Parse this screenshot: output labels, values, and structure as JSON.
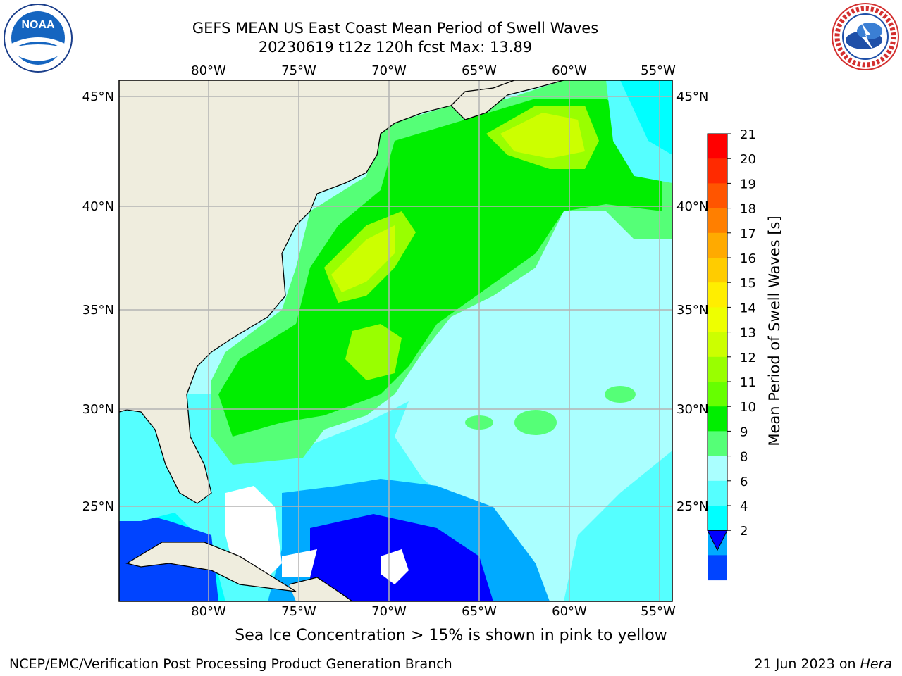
{
  "title": {
    "line1": "GEFS MEAN US East Coast Mean Period of Swell Waves",
    "line2": "20230619 t12z 120h fcst   Max: 13.89"
  },
  "map": {
    "lon_labels": [
      "80°W",
      "75°W",
      "70°W",
      "65°W",
      "60°W",
      "55°W"
    ],
    "lat_labels": [
      "45°N",
      "40°N",
      "35°N",
      "30°N",
      "25°N"
    ],
    "lon_range": [
      -85,
      -54
    ],
    "lat_range": [
      20.5,
      46
    ]
  },
  "colorbar": {
    "label": "Mean Period of Swell Waves [s]",
    "ticks": [
      "21",
      "20",
      "19",
      "18",
      "17",
      "16",
      "15",
      "14",
      "13",
      "12",
      "11",
      "10",
      "9",
      "8",
      "6",
      "4",
      "2"
    ],
    "colors": [
      "#ff0000",
      "#ff2a00",
      "#ff5500",
      "#ff7f00",
      "#ffaa00",
      "#ffcc00",
      "#ffee00",
      "#eeff00",
      "#ccff00",
      "#99ff00",
      "#66ff00",
      "#00ee00",
      "#55ff77",
      "#aaffff",
      "#55ffff",
      "#00ffff",
      "#00aaff",
      "#0044ff",
      "#0000ff"
    ]
  },
  "footer": {
    "ice_note": "Sea Ice Concentration > 15% is shown in pink to yellow",
    "credit": "NCEP/EMC/Verification Post Processing Product Generation Branch",
    "date": "21 Jun 2023 on ",
    "machine": "Hera"
  },
  "logos": {
    "left": "NOAA",
    "right": "NATIONAL WEATHER SERVICE"
  },
  "colors": {
    "land": "#efedde",
    "grid": "#b4b4b4"
  }
}
